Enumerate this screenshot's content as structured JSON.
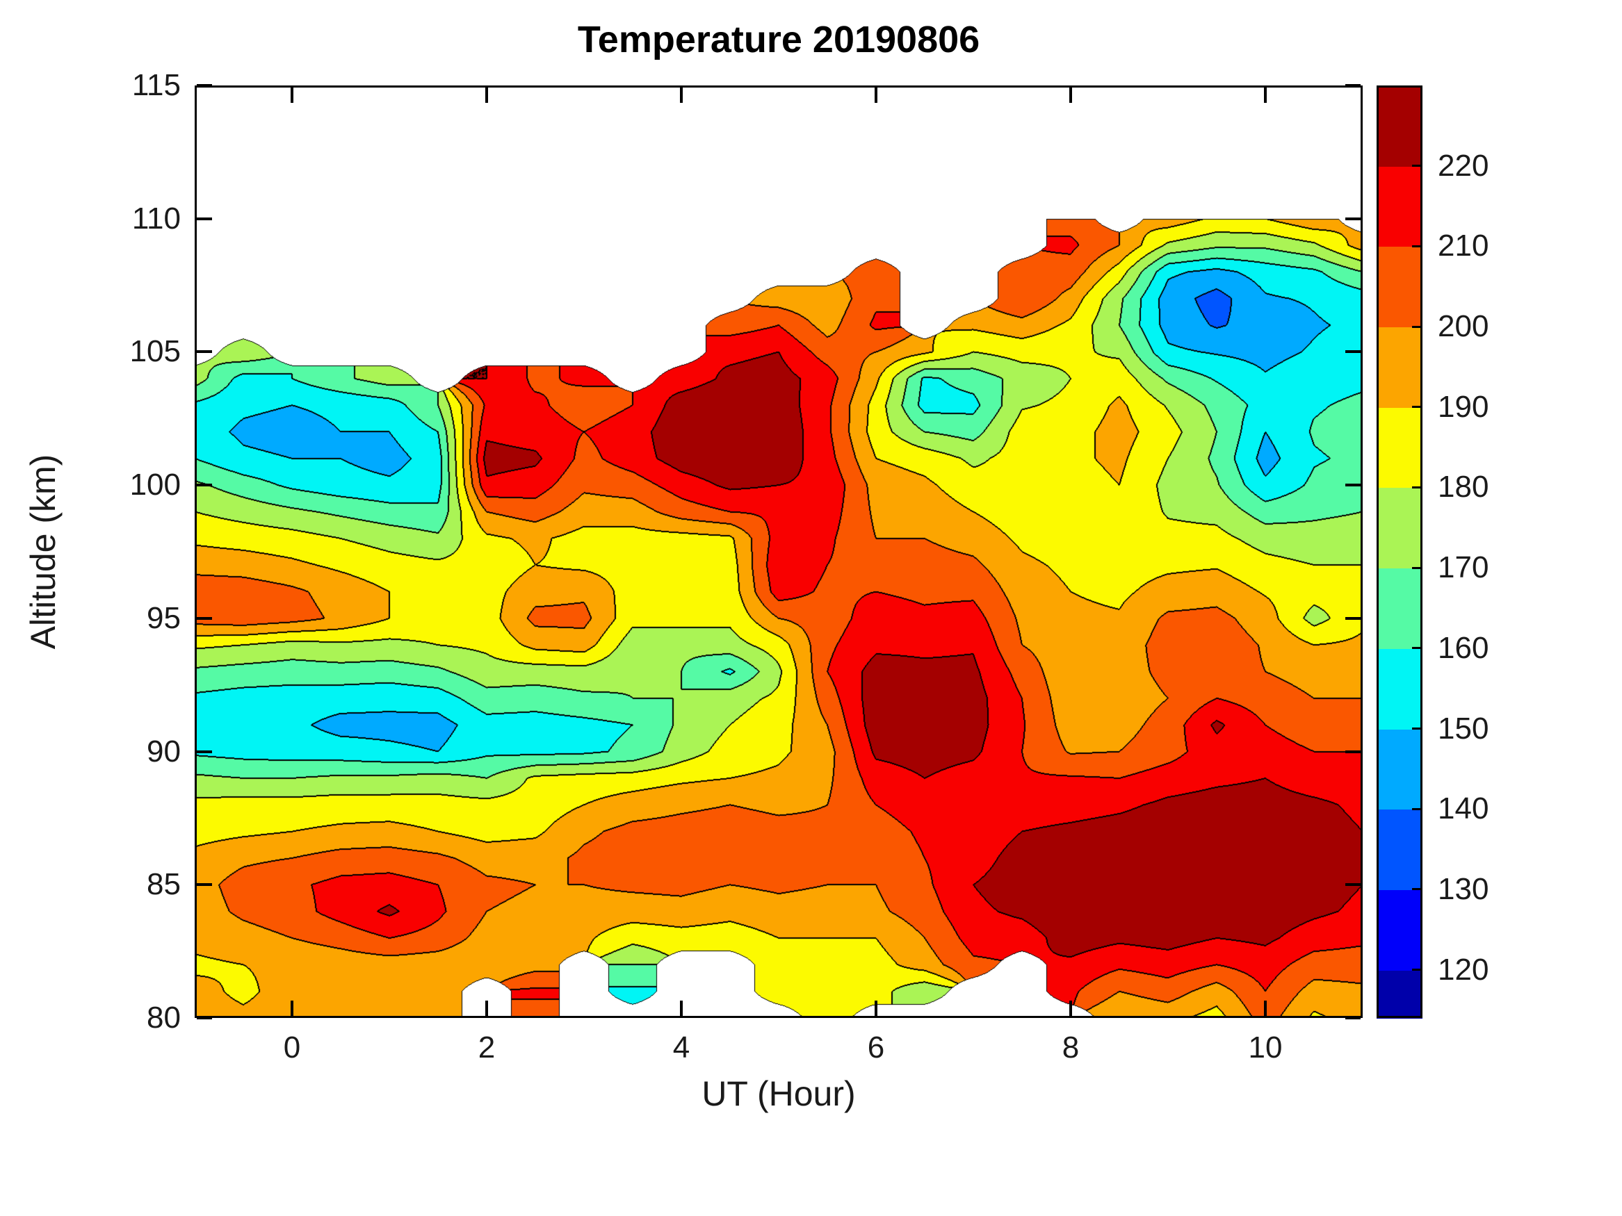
{
  "title": "Temperature 20190806",
  "axes": {
    "x": {
      "label": "UT (Hour)",
      "tick_values": [
        0,
        2,
        4,
        6,
        8,
        10
      ],
      "range": [
        -1,
        11
      ]
    },
    "y": {
      "label": "Altitude (km)",
      "tick_values": [
        80,
        85,
        90,
        95,
        100,
        105,
        110,
        115
      ],
      "range": [
        80,
        115
      ]
    }
  },
  "colorbar": {
    "tick_values": [
      120,
      130,
      140,
      150,
      160,
      170,
      180,
      190,
      200,
      210,
      220
    ],
    "value_range": [
      114,
      230
    ],
    "band_edges": [
      114,
      120,
      130,
      140,
      150,
      160,
      170,
      180,
      190,
      200,
      210,
      220,
      230
    ],
    "band_colors": [
      "#0000AA",
      "#0000FA",
      "#0055FF",
      "#00AAFF",
      "#00F5F5",
      "#55FAA5",
      "#AAF455",
      "#FCFA00",
      "#FCA500",
      "#FA5700",
      "#F90000",
      "#A40000"
    ]
  },
  "chart_data": {
    "type": "heatmap",
    "title": "Temperature 20190806",
    "xlabel": "UT (Hour)",
    "ylabel": "Altitude (km)",
    "legend": "colorbar, discrete 10-unit temperature bands, jet palette",
    "grid": false,
    "contour_levels": [
      120,
      130,
      140,
      150,
      160,
      170,
      180,
      190,
      200,
      210,
      220
    ],
    "no_data_value": null,
    "rows_bottom_to_top": true,
    "x": [
      -1.0,
      -0.5,
      0.0,
      0.5,
      1.0,
      1.5,
      2.0,
      2.5,
      3.0,
      3.5,
      4.0,
      4.5,
      5.0,
      5.5,
      6.0,
      6.5,
      7.0,
      7.5,
      8.0,
      8.5,
      9.0,
      9.5,
      10.0,
      10.5,
      11.0
    ],
    "y": [
      80,
      81,
      82,
      83,
      84,
      85,
      86,
      87,
      88,
      89,
      90,
      91,
      92,
      93,
      94,
      95,
      96,
      97,
      98,
      99,
      100,
      101,
      102,
      103,
      104,
      105,
      106,
      107,
      108,
      109,
      110
    ],
    "values": [
      [
        194,
        192,
        194,
        195,
        196,
        195,
        null,
        205,
        null,
        null,
        null,
        null,
        null,
        184,
        null,
        null,
        null,
        null,
        null,
        190,
        193,
        186,
        205,
        188,
        195
      ],
      [
        193,
        188,
        194,
        196,
        196,
        194,
        null,
        212,
        null,
        158,
        null,
        null,
        184,
        185,
        184,
        172,
        null,
        null,
        212,
        200,
        205,
        195,
        210,
        196,
        198
      ],
      [
        188,
        190,
        192,
        194,
        195,
        194,
        192,
        196,
        null,
        170,
        null,
        null,
        188,
        186,
        186,
        195,
        208,
        null,
        218,
        212,
        215,
        210,
        215,
        205,
        205
      ],
      [
        193,
        196,
        200,
        204,
        210,
        206,
        196,
        195,
        192,
        183,
        186,
        185,
        190,
        190,
        190,
        200,
        214,
        215,
        225,
        222,
        224,
        220,
        222,
        215,
        212
      ],
      [
        195,
        202,
        206,
        214,
        222,
        212,
        200,
        198,
        196,
        195,
        196,
        193,
        196,
        195,
        198,
        205,
        218,
        222,
        228,
        228,
        228,
        226,
        226,
        222,
        218
      ],
      [
        196,
        204,
        208,
        213,
        214,
        210,
        202,
        200,
        200,
        202,
        203,
        200,
        202,
        200,
        200,
        208,
        220,
        225,
        228,
        230,
        230,
        228,
        227,
        224,
        220
      ],
      [
        193,
        198,
        200,
        204,
        205,
        202,
        196,
        196,
        202,
        205,
        206,
        204,
        204,
        202,
        202,
        210,
        216,
        224,
        226,
        228,
        229,
        228,
        227,
        225,
        221
      ],
      [
        186,
        188,
        190,
        192,
        193,
        190,
        186,
        188,
        198,
        203,
        204,
        205,
        203,
        202,
        205,
        212,
        214,
        220,
        222,
        224,
        226,
        226,
        226,
        224,
        220
      ],
      [
        183,
        184,
        184,
        185,
        185,
        184,
        183,
        184,
        190,
        195,
        198,
        200,
        198,
        200,
        210,
        216,
        214,
        215,
        216,
        218,
        222,
        224,
        224,
        222,
        218
      ],
      [
        172,
        170,
        170,
        172,
        172,
        174,
        170,
        182,
        184,
        185,
        188,
        190,
        192,
        198,
        215,
        220,
        216,
        211,
        211,
        210,
        215,
        218,
        220,
        215,
        214
      ],
      [
        158,
        156,
        155,
        154,
        152,
        150,
        158,
        157,
        158,
        162,
        175,
        184,
        188,
        196,
        222,
        224,
        222,
        210,
        199,
        200,
        206,
        216,
        214,
        210,
        210
      ],
      [
        155,
        153,
        152,
        147,
        147,
        146,
        156,
        155,
        157,
        160,
        172,
        180,
        186,
        200,
        226,
        226,
        224,
        211,
        195,
        196,
        204,
        222,
        210,
        205,
        206
      ],
      [
        158,
        156,
        155,
        154,
        153,
        155,
        166,
        165,
        168,
        170,
        170,
        176,
        182,
        205,
        226,
        225,
        224,
        210,
        193,
        194,
        200,
        210,
        205,
        200,
        200
      ],
      [
        168,
        166,
        165,
        166,
        165,
        168,
        176,
        175,
        176,
        171,
        170,
        158,
        178,
        210,
        224,
        222,
        222,
        206,
        192,
        195,
        203,
        204,
        200,
        196,
        196
      ],
      [
        182,
        180,
        176,
        178,
        177,
        180,
        182,
        193,
        195,
        174,
        172,
        176,
        185,
        208,
        218,
        218,
        219,
        200,
        194,
        194,
        205,
        206,
        199,
        190,
        192
      ],
      [
        205,
        207,
        204,
        198,
        190,
        186,
        185,
        203,
        203,
        183,
        184,
        182,
        200,
        205,
        215,
        212,
        214,
        198,
        192,
        191,
        202,
        203,
        195,
        176,
        188
      ],
      [
        207,
        206,
        202,
        196,
        190,
        188,
        186,
        196,
        198,
        185,
        185,
        184,
        215,
        208,
        210,
        208,
        208,
        195,
        190,
        188,
        194,
        196,
        189,
        184,
        184
      ],
      [
        196,
        195,
        192,
        188,
        184,
        182,
        183,
        190,
        188,
        186,
        185,
        185,
        218,
        210,
        205,
        204,
        202,
        192,
        188,
        186,
        188,
        189,
        183,
        180,
        180
      ],
      [
        188,
        186,
        184,
        180,
        176,
        172,
        188,
        192,
        186,
        186,
        186,
        188,
        215,
        212,
        200,
        200,
        196,
        188,
        185,
        186,
        183,
        183,
        176,
        174,
        175
      ],
      [
        180,
        176,
        172,
        168,
        164,
        162,
        200,
        205,
        195,
        195,
        205,
        210,
        212,
        215,
        198,
        196,
        190,
        184,
        184,
        188,
        179,
        177,
        165,
        168,
        170
      ],
      [
        172,
        165,
        158,
        154,
        152,
        156,
        218,
        215,
        202,
        205,
        215,
        222,
        220,
        218,
        196,
        192,
        184,
        181,
        186,
        190,
        177,
        171,
        152,
        162,
        165
      ],
      [
        160,
        152,
        150,
        150,
        146,
        155,
        224,
        222,
        207,
        215,
        225,
        228,
        226,
        214,
        190,
        186,
        178,
        184,
        188,
        192,
        180,
        168,
        146,
        159,
        162
      ],
      [
        155,
        148,
        146,
        150,
        150,
        160,
        218,
        215,
        210,
        215,
        228,
        230,
        228,
        212,
        185,
        170,
        166,
        185,
        186,
        194,
        184,
        170,
        150,
        161,
        164
      ],
      [
        158,
        152,
        150,
        152,
        155,
        170,
        212,
        212,
        205,
        210,
        225,
        228,
        226,
        212,
        186,
        156,
        157,
        179,
        182,
        192,
        179,
        167,
        156,
        159,
        162
      ],
      [
        175,
        156,
        160,
        168,
        175,
        null,
        220,
        208,
        212,
        null,
        215,
        222,
        224,
        215,
        192,
        158,
        164,
        174,
        180,
        186,
        168,
        159,
        151,
        156,
        158
      ],
      [
        null,
        178,
        null,
        null,
        null,
        null,
        null,
        null,
        null,
        null,
        null,
        218,
        220,
        205,
        200,
        192,
        180,
        184,
        182,
        178,
        152,
        149,
        147,
        151,
        155
      ],
      [
        null,
        null,
        null,
        null,
        null,
        null,
        null,
        null,
        null,
        null,
        null,
        205,
        210,
        196,
        212,
        null,
        192,
        196,
        188,
        170,
        146,
        139,
        144,
        149,
        152
      ],
      [
        null,
        null,
        null,
        null,
        null,
        null,
        null,
        null,
        null,
        null,
        null,
        null,
        195,
        192,
        208,
        null,
        null,
        210,
        196,
        172,
        145,
        136,
        149,
        151,
        155
      ],
      [
        null,
        null,
        null,
        null,
        null,
        null,
        null,
        null,
        null,
        null,
        null,
        null,
        null,
        null,
        204,
        null,
        null,
        207,
        206,
        185,
        152,
        147,
        154,
        158,
        170
      ],
      [
        null,
        null,
        null,
        null,
        null,
        null,
        null,
        null,
        null,
        null,
        null,
        null,
        null,
        null,
        null,
        null,
        null,
        null,
        212,
        200,
        178,
        172,
        172,
        178,
        195
      ],
      [
        null,
        null,
        null,
        null,
        null,
        null,
        null,
        null,
        null,
        null,
        null,
        null,
        null,
        null,
        null,
        null,
        null,
        null,
        206,
        null,
        196,
        188,
        190,
        198,
        null
      ]
    ]
  }
}
